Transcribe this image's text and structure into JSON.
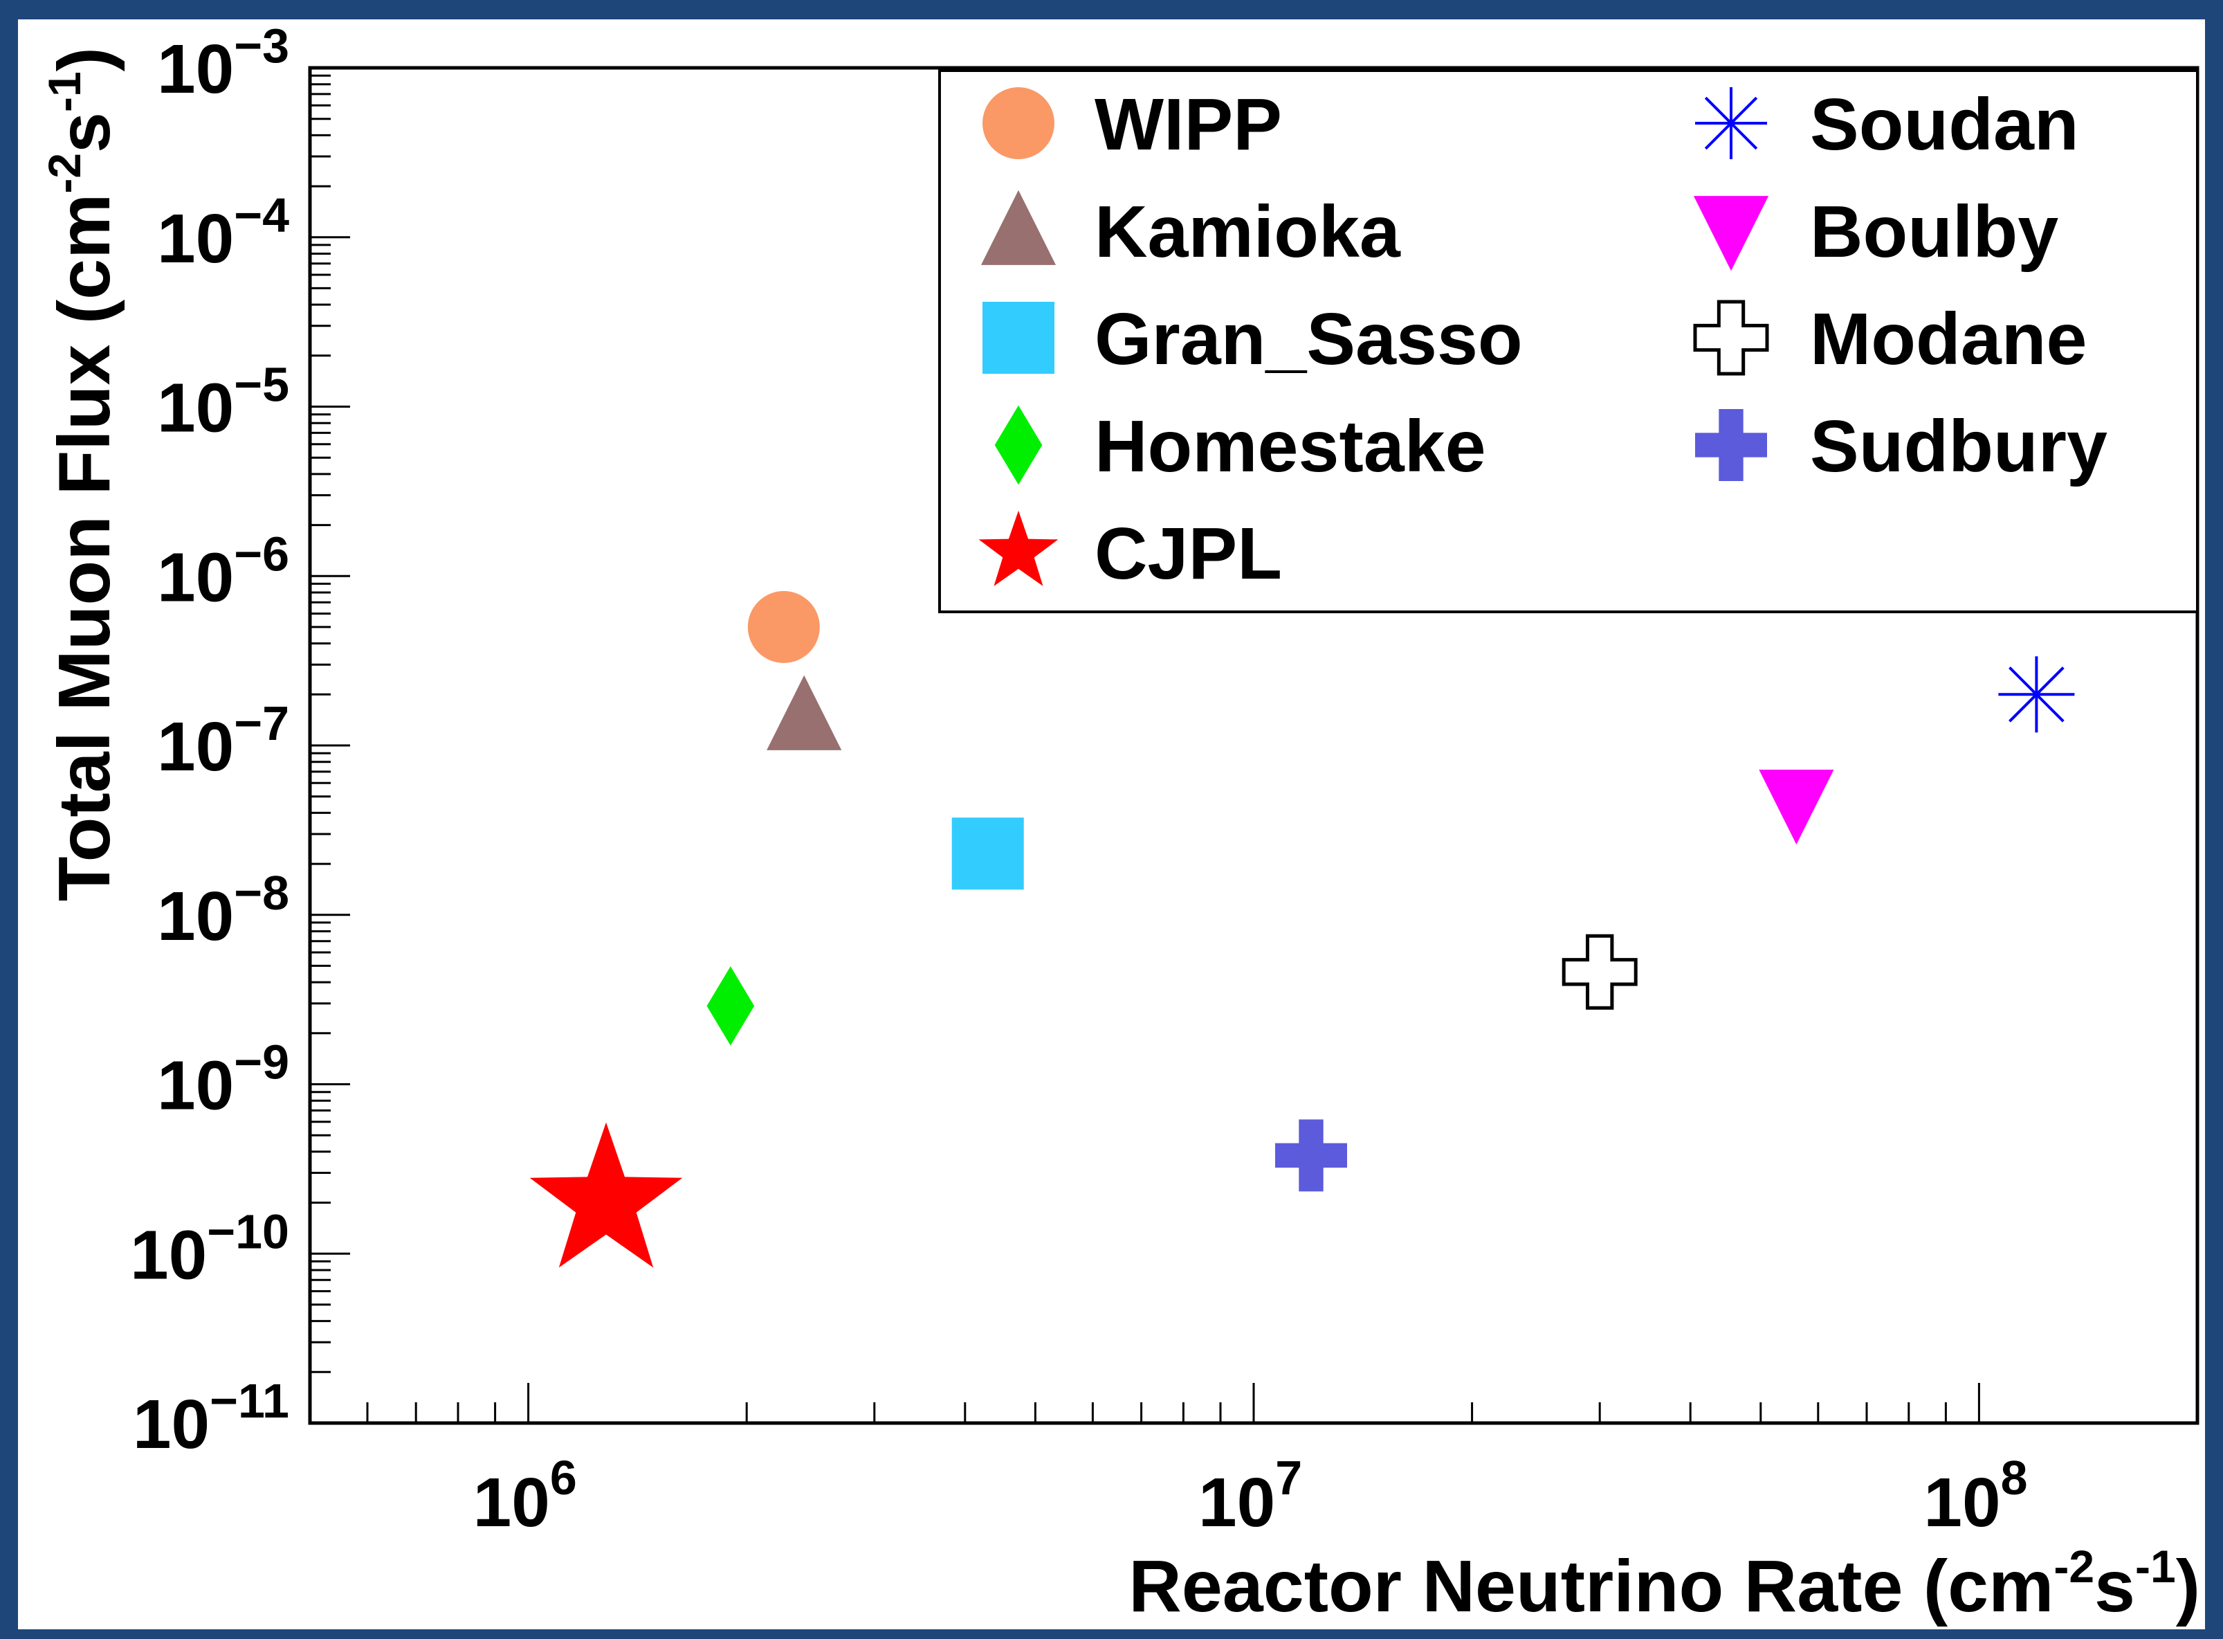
{
  "chart_data": {
    "type": "scatter",
    "x_scale": "log",
    "y_scale": "log",
    "xlim": [
      500000,
      200000000
    ],
    "ylim": [
      1e-11,
      0.001
    ],
    "x_ticks": [
      {
        "value": 1000000,
        "base": "10",
        "exp": "6"
      },
      {
        "value": 10000000,
        "base": "10",
        "exp": "7"
      },
      {
        "value": 100000000,
        "base": "10",
        "exp": "8"
      }
    ],
    "y_ticks": [
      {
        "value": 0.001,
        "base": "10",
        "exp": "−3"
      },
      {
        "value": 0.0001,
        "base": "10",
        "exp": "−4"
      },
      {
        "value": 1e-05,
        "base": "10",
        "exp": "−5"
      },
      {
        "value": 1e-06,
        "base": "10",
        "exp": "−6"
      },
      {
        "value": 1e-07,
        "base": "10",
        "exp": "−7"
      },
      {
        "value": 1e-08,
        "base": "10",
        "exp": "−8"
      },
      {
        "value": 1e-09,
        "base": "10",
        "exp": "−9"
      },
      {
        "value": 1e-10,
        "base": "10",
        "exp": "−10"
      },
      {
        "value": 1e-11,
        "base": "10",
        "exp": "−11"
      }
    ],
    "xlabel": {
      "main": "Reactor Neutrino Rate (cm",
      "sup1": "-2",
      "mid": "s",
      "sup2": "-1",
      "end": ")"
    },
    "ylabel": {
      "main": "Total Muon Flux (cm",
      "sup1": "-2",
      "mid": "s",
      "sup2": "-1",
      "end": ")"
    },
    "legend_position": "top-right",
    "series": [
      {
        "name": "WIPP",
        "marker": "circle",
        "color": "#fa9966",
        "x": 2250000,
        "y": 5e-07
      },
      {
        "name": "Kamioka",
        "marker": "triangle-up",
        "color": "#987070",
        "x": 2400000,
        "y": 1.5e-07
      },
      {
        "name": "Gran_Sasso",
        "marker": "square",
        "color": "#33ccff",
        "x": 4300000,
        "y": 2.3e-08
      },
      {
        "name": "Homestake",
        "marker": "diamond",
        "color": "#00ee00",
        "x": 1900000,
        "y": 2.9e-09
      },
      {
        "name": "CJPL",
        "marker": "star",
        "color": "#ff0000",
        "x": 1280000,
        "y": 2e-10
      },
      {
        "name": "Soudan",
        "marker": "asterisk",
        "color": "#0000ff",
        "x": 120000000,
        "y": 2e-07
      },
      {
        "name": "Boulby",
        "marker": "triangle-down",
        "color": "#ff00ff",
        "x": 56000000,
        "y": 4.5e-08
      },
      {
        "name": "Modane",
        "marker": "open-cross",
        "color": "#000000",
        "x": 30000000,
        "y": 4.6e-09
      },
      {
        "name": "Sudbury",
        "marker": "filled-cross",
        "color": "#5b5bdb",
        "x": 12000000,
        "y": 3.8e-10
      }
    ]
  }
}
